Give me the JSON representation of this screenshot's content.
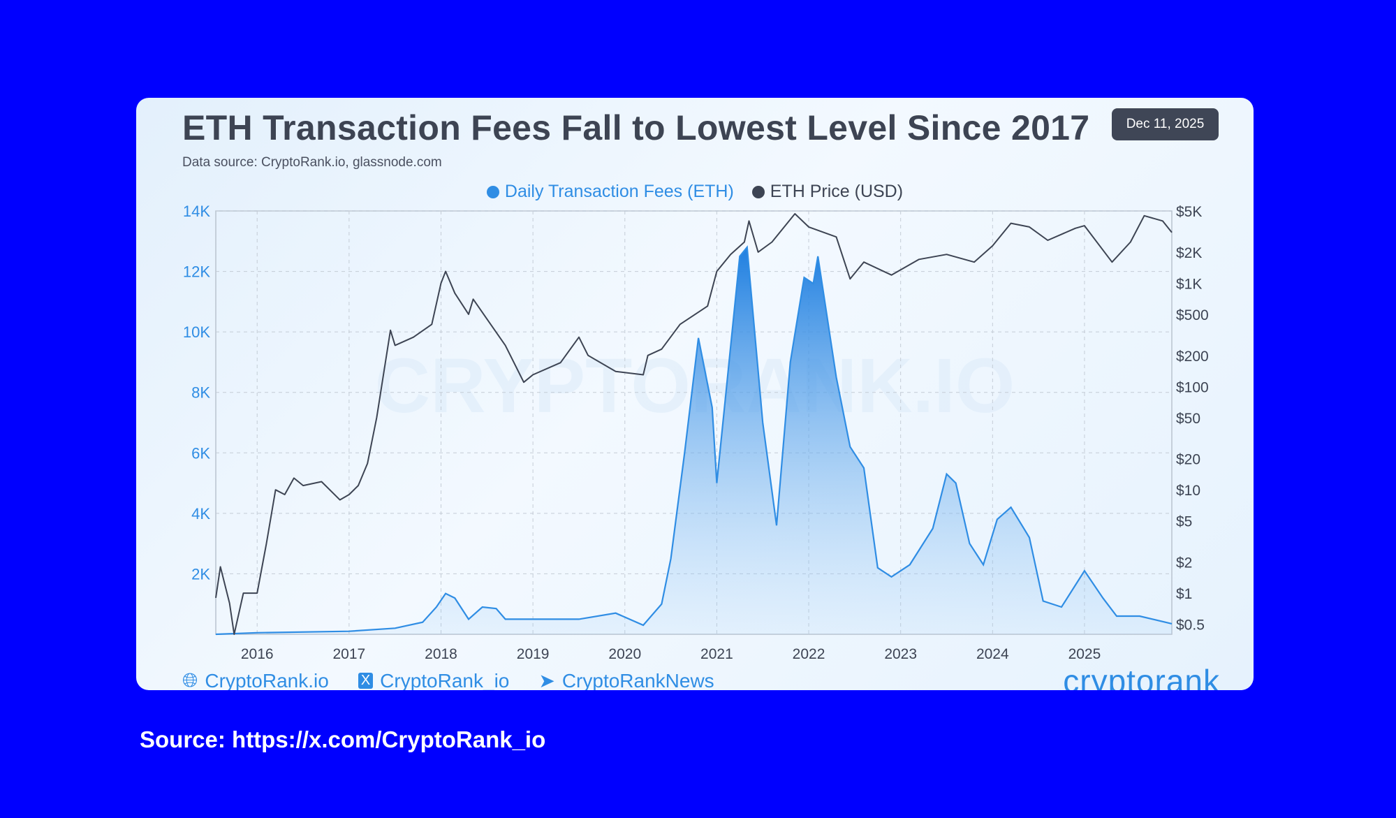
{
  "header": {
    "title": "ETH Transaction Fees Fall to Lowest Level Since 2017",
    "date_badge": "Dec 11, 2025",
    "subtitle": "Data source: CryptoRank.io, glassnode.com"
  },
  "footer": {
    "links": [
      {
        "icon": "globe-icon",
        "label": "CryptoRank.io"
      },
      {
        "icon": "x-logo-icon",
        "label": "CryptoRank_io"
      },
      {
        "icon": "telegram-icon",
        "label": "CryptoRankNews"
      }
    ],
    "brand_logo": "cryptorank",
    "watermark": "CRYPTORANK.IO"
  },
  "source": "Source: https://x.com/CryptoRank_io",
  "colors": {
    "background": "#0000ff",
    "fees": "#2f8de4",
    "price": "#3d4453",
    "title": "#3d4453"
  },
  "chart_data": {
    "type": "area+line",
    "title": "ETH Transaction Fees Fall to Lowest Level Since 2017",
    "legend_position": "top-center",
    "grid": true,
    "x_ticks": [
      "2016",
      "2017",
      "2018",
      "2019",
      "2020",
      "2021",
      "2022",
      "2023",
      "2024",
      "2025"
    ],
    "xlim": [
      2015.55,
      2025.95
    ],
    "left_axis": {
      "ticks": [
        "14K",
        "12K",
        "10K",
        "8K",
        "6K",
        "4K",
        "2K"
      ],
      "tick_values": [
        14000,
        12000,
        10000,
        8000,
        6000,
        4000,
        2000
      ],
      "ylim": [
        0,
        14000
      ],
      "color": "#2f8de4"
    },
    "right_axis": {
      "scale": "log",
      "ticks": [
        "$5K",
        "$2K",
        "$1K",
        "$500",
        "$200",
        "$100",
        "$50",
        "$20",
        "$10",
        "$5",
        "$2",
        "$1",
        "$0.5"
      ],
      "tick_values": [
        5000,
        2000,
        1000,
        500,
        200,
        100,
        50,
        20,
        10,
        5,
        2,
        1,
        0.5
      ],
      "ylim": [
        0.4,
        5000
      ]
    },
    "series": [
      {
        "name": "Daily Transaction Fees (ETH)",
        "axis": "left",
        "type": "area",
        "color": "#2f8de4",
        "x": [
          2015.55,
          2016,
          2017,
          2017.5,
          2017.8,
          2017.95,
          2018.05,
          2018.15,
          2018.3,
          2018.45,
          2018.6,
          2018.7,
          2019,
          2019.5,
          2019.9,
          2020.2,
          2020.4,
          2020.5,
          2020.65,
          2020.8,
          2020.95,
          2021.0,
          2021.1,
          2021.25,
          2021.33,
          2021.5,
          2021.65,
          2021.8,
          2021.95,
          2022.05,
          2022.1,
          2022.3,
          2022.45,
          2022.6,
          2022.75,
          2022.9,
          2023.1,
          2023.35,
          2023.5,
          2023.6,
          2023.75,
          2023.9,
          2024.05,
          2024.2,
          2024.4,
          2024.55,
          2024.75,
          2025.0,
          2025.2,
          2025.35,
          2025.6,
          2025.95
        ],
        "values": [
          0,
          50,
          100,
          200,
          400,
          900,
          1350,
          1200,
          500,
          900,
          850,
          500,
          500,
          500,
          700,
          300,
          1000,
          2500,
          6000,
          9800,
          7500,
          5000,
          8000,
          12500,
          12800,
          7000,
          3600,
          9000,
          11800,
          11600,
          12500,
          8500,
          6200,
          5500,
          2200,
          1900,
          2300,
          3500,
          5300,
          5000,
          3000,
          2300,
          3800,
          4200,
          3200,
          1100,
          900,
          2100,
          1200,
          600,
          600,
          350
        ]
      },
      {
        "name": "ETH Price (USD)",
        "axis": "right",
        "type": "line",
        "color": "#3d4453",
        "x": [
          2015.55,
          2015.6,
          2015.7,
          2015.75,
          2015.85,
          2016.0,
          2016.1,
          2016.2,
          2016.3,
          2016.4,
          2016.5,
          2016.7,
          2016.9,
          2017.0,
          2017.1,
          2017.2,
          2017.3,
          2017.45,
          2017.5,
          2017.7,
          2017.9,
          2018.0,
          2018.05,
          2018.15,
          2018.3,
          2018.35,
          2018.5,
          2018.7,
          2018.9,
          2019.0,
          2019.3,
          2019.5,
          2019.6,
          2019.9,
          2020.2,
          2020.25,
          2020.4,
          2020.6,
          2020.9,
          2021.0,
          2021.15,
          2021.3,
          2021.35,
          2021.45,
          2021.6,
          2021.85,
          2022.0,
          2022.3,
          2022.45,
          2022.6,
          2022.9,
          2023.2,
          2023.5,
          2023.8,
          2024.0,
          2024.2,
          2024.4,
          2024.6,
          2024.9,
          2025.0,
          2025.3,
          2025.5,
          2025.65,
          2025.85,
          2025.95
        ],
        "values": [
          0.9,
          1.8,
          0.8,
          0.4,
          1.0,
          1.0,
          3.0,
          10,
          9,
          13,
          11,
          12,
          8,
          9,
          11,
          18,
          50,
          350,
          250,
          300,
          400,
          1000,
          1300,
          800,
          500,
          700,
          450,
          250,
          110,
          130,
          170,
          300,
          200,
          140,
          130,
          200,
          230,
          400,
          600,
          1300,
          1900,
          2500,
          4000,
          2000,
          2500,
          4700,
          3500,
          2800,
          1100,
          1600,
          1200,
          1700,
          1900,
          1600,
          2300,
          3800,
          3500,
          2600,
          3400,
          3600,
          1600,
          2500,
          4500,
          4000,
          3100
        ]
      }
    ]
  }
}
